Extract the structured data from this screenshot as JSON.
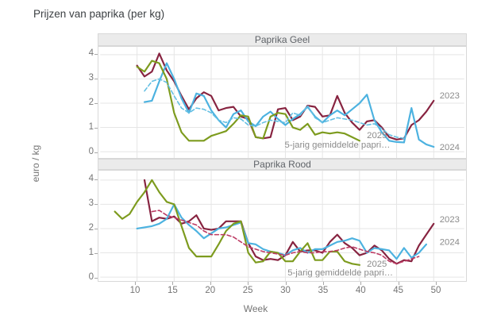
{
  "chart_data": {
    "type": "line",
    "title": "Prijzen van paprika (per kg)",
    "xlabel": "Week",
    "ylabel": "euro / kg",
    "x_ticks": [
      10,
      15,
      20,
      25,
      30,
      35,
      40,
      45,
      50
    ],
    "y_ticks": [
      0,
      1,
      2,
      3,
      4
    ],
    "x_range_weeks": [
      5,
      54
    ],
    "y_range": [
      0,
      4
    ],
    "grid": true,
    "legend_position": "line-end-labels",
    "colors": {
      "y2023": "#872340",
      "y2024": "#4cb2e0",
      "y2025": "#7d9b1e",
      "avg_geel": "#63bfe3",
      "avg_rood": "#bc3a63"
    },
    "panels": [
      {
        "name": "Paprika Geel",
        "series": [
          {
            "name": "2023",
            "color": "#872340",
            "style": "solid",
            "start_week": 10,
            "values": [
              3.55,
              3.1,
              3.3,
              4.05,
              3.35,
              2.9,
              2.3,
              1.75,
              2.2,
              2.45,
              2.3,
              1.7,
              1.8,
              1.85,
              1.45,
              1.35,
              0.6,
              0.55,
              0.6,
              1.75,
              1.8,
              1.3,
              1.45,
              1.9,
              1.85,
              1.45,
              1.5,
              2.3,
              1.6,
              1.2,
              0.9,
              1.25,
              1.3,
              1.0,
              0.6,
              0.5,
              0.55,
              1.1,
              1.3,
              1.65,
              2.1
            ]
          },
          {
            "name": "2024",
            "color": "#4cb2e0",
            "style": "solid",
            "start_week": 11,
            "values": [
              2.05,
              2.1,
              2.9,
              3.65,
              3.0,
              2.2,
              1.6,
              2.4,
              2.3,
              1.7,
              1.3,
              1.0,
              1.55,
              1.7,
              1.25,
              1.05,
              1.45,
              1.65,
              1.35,
              1.1,
              1.35,
              1.55,
              1.85,
              1.45,
              1.2,
              1.5,
              1.7,
              1.5,
              1.75,
              2.0,
              2.35,
              1.3,
              0.8,
              0.45,
              0.4,
              0.38,
              1.8,
              0.5,
              0.3,
              0.2
            ]
          },
          {
            "name": "2025",
            "color": "#7d9b1e",
            "style": "solid",
            "start_week": 10,
            "values": [
              3.5,
              3.3,
              3.75,
              3.65,
              3.0,
              1.6,
              0.8,
              0.45,
              0.45,
              0.45,
              0.65,
              0.75,
              0.85,
              1.15,
              1.5,
              1.45,
              0.6,
              0.55,
              1.45,
              1.6,
              1.55,
              1.0,
              0.9,
              1.15,
              0.7,
              0.8,
              0.75,
              0.8,
              0.75,
              0.6,
              0.45
            ]
          },
          {
            "name": "5-jarig gemiddelde paprika",
            "color": "#63bfe3",
            "style": "dashed",
            "start_week": 11,
            "values": [
              2.5,
              2.9,
              3.0,
              2.85,
              2.3,
              1.8,
              1.6,
              1.8,
              1.75,
              1.6,
              1.3,
              1.2,
              1.4,
              1.35,
              1.1,
              1.05,
              1.2,
              1.3,
              1.25,
              1.2,
              1.6,
              1.5,
              1.9,
              1.4,
              1.2,
              1.3,
              1.4,
              1.35,
              1.3,
              1.2,
              1.1,
              1.15,
              0.95,
              0.7,
              0.6,
              0.55
            ]
          }
        ],
        "labels": [
          {
            "text": "2023",
            "week": 50.8,
            "value": 2.3
          },
          {
            "text": "2024",
            "week": 50.8,
            "value": 0.17
          },
          {
            "text": "2025",
            "week": 41.0,
            "value": 0.65
          },
          {
            "text": "5-jarig gemiddelde papri…",
            "week": 29.9,
            "value": 0.27
          }
        ]
      },
      {
        "name": "Paprika Rood",
        "series": [
          {
            "name": "2023",
            "color": "#872340",
            "style": "solid",
            "start_week": 11,
            "values": [
              4.0,
              2.3,
              2.45,
              2.4,
              2.5,
              2.2,
              2.3,
              2.55,
              2.0,
              1.95,
              2.0,
              2.3,
              2.3,
              2.3,
              1.4,
              0.85,
              0.7,
              0.75,
              0.7,
              0.9,
              1.45,
              1.05,
              1.1,
              1.1,
              1.0,
              1.45,
              1.75,
              1.4,
              1.2,
              0.9,
              1.0,
              1.3,
              1.1,
              0.75,
              0.55,
              0.7,
              0.65,
              1.3,
              1.75,
              2.2
            ]
          },
          {
            "name": "2024",
            "color": "#4cb2e0",
            "style": "solid",
            "start_week": 10,
            "values": [
              2.0,
              2.05,
              2.1,
              2.2,
              2.4,
              3.0,
              2.45,
              2.15,
              1.9,
              1.6,
              1.8,
              2.0,
              2.05,
              2.15,
              2.25,
              1.4,
              1.35,
              1.15,
              1.05,
              1.0,
              0.9,
              1.1,
              1.2,
              1.0,
              1.15,
              1.15,
              1.3,
              1.45,
              1.5,
              1.6,
              1.5,
              1.0,
              1.2,
              1.15,
              1.1,
              0.75,
              1.2,
              0.8,
              1.0,
              1.35
            ]
          },
          {
            "name": "2025",
            "color": "#7d9b1e",
            "style": "solid",
            "start_week": 7,
            "values": [
              2.7,
              2.4,
              2.6,
              3.1,
              3.5,
              4.0,
              3.5,
              3.1,
              3.0,
              2.1,
              1.2,
              0.85,
              0.85,
              0.85,
              1.35,
              1.9,
              2.2,
              2.3,
              1.0,
              0.6,
              0.65,
              1.05,
              1.0,
              0.65,
              0.65,
              1.05,
              1.4,
              0.7,
              0.7,
              1.05,
              1.05,
              0.65,
              0.55,
              0.5
            ]
          },
          {
            "name": "5-jarig gemiddelde paprika",
            "color": "#bc3a63",
            "style": "dashed",
            "start_week": 12,
            "values": [
              2.7,
              2.75,
              2.55,
              2.45,
              2.35,
              2.25,
              2.15,
              1.9,
              1.75,
              1.75,
              1.75,
              1.65,
              1.45,
              1.25,
              1.15,
              1.05,
              1.0,
              0.95,
              0.9,
              1.0,
              1.05,
              1.0,
              1.0,
              1.05,
              1.05,
              1.1,
              1.2,
              1.25,
              1.15,
              1.05,
              1.0,
              0.9,
              0.65,
              0.55,
              0.65,
              0.75,
              0.85
            ]
          }
        ],
        "labels": [
          {
            "text": "2023",
            "week": 50.8,
            "value": 2.35
          },
          {
            "text": "2024",
            "week": 50.8,
            "value": 1.43
          },
          {
            "text": "2025",
            "week": 41.0,
            "value": 0.52
          },
          {
            "text": "5-jarig gemiddelde papri…",
            "week": 30.3,
            "value": 0.16
          }
        ]
      }
    ]
  }
}
